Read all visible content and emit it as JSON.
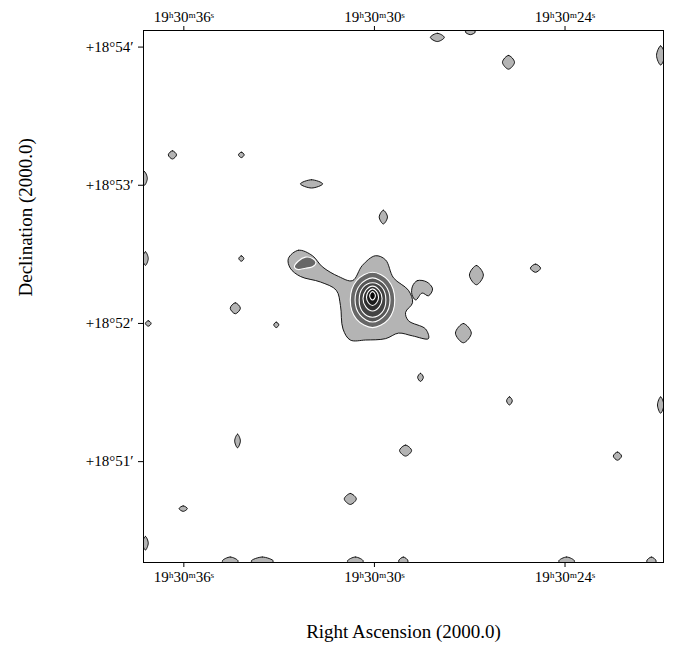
{
  "chart_data": {
    "type": "contour",
    "xlabel": "Right Ascension (2000.0)",
    "ylabel": "Declination (2000.0)",
    "xlim": [
      70237.27,
      70220.9
    ],
    "ylim": [
      1130.27,
      1134.12
    ],
    "xticks": [
      {
        "value": 70236,
        "label": "19ʰ30ᵐ36ˢ"
      },
      {
        "value": 70230,
        "label": "19ʰ30ᵐ30ˢ"
      },
      {
        "value": 70224,
        "label": "19ʰ30ᵐ24ˢ"
      }
    ],
    "yticks": [
      {
        "value": 1131,
        "label": "+18°51′"
      },
      {
        "value": 1132,
        "label": "+18°52′"
      },
      {
        "value": 1133,
        "label": "+18°53′"
      },
      {
        "value": 1134,
        "label": "+18°54′"
      }
    ],
    "contours": [
      {
        "level": 1,
        "points": [
          [
            70232.71,
            1132.47
          ],
          [
            70232.39,
            1132.53
          ],
          [
            70231.95,
            1132.49
          ],
          [
            70231.64,
            1132.41
          ],
          [
            70231.13,
            1132.34
          ],
          [
            70230.69,
            1132.31
          ],
          [
            70230.38,
            1132.42
          ],
          [
            70229.97,
            1132.49
          ],
          [
            70229.65,
            1132.46
          ],
          [
            70229.4,
            1132.33
          ],
          [
            70228.93,
            1132.24
          ],
          [
            70228.8,
            1132.15
          ],
          [
            70229.02,
            1132.08
          ],
          [
            70228.93,
            1132.02
          ],
          [
            70228.39,
            1131.96
          ],
          [
            70228.3,
            1131.89
          ],
          [
            70228.8,
            1131.91
          ],
          [
            70229.24,
            1131.93
          ],
          [
            70229.65,
            1131.89
          ],
          [
            70230.28,
            1131.88
          ],
          [
            70230.76,
            1131.88
          ],
          [
            70230.99,
            1131.96
          ],
          [
            70231.07,
            1132.13
          ],
          [
            70231.2,
            1132.24
          ],
          [
            70231.7,
            1132.3
          ],
          [
            70232.33,
            1132.34
          ],
          [
            70232.65,
            1132.4
          ]
        ]
      },
      {
        "level": 1,
        "points": [
          [
            70228.8,
            1132.27
          ],
          [
            70228.65,
            1132.31
          ],
          [
            70228.35,
            1132.3
          ],
          [
            70228.17,
            1132.25
          ],
          [
            70228.3,
            1132.2
          ],
          [
            70228.5,
            1132.22
          ],
          [
            70228.7,
            1132.17
          ],
          [
            70228.82,
            1132.21
          ]
        ]
      },
      {
        "level": 1,
        "points": [
          [
            70228.24,
            1134.07
          ],
          [
            70228.02,
            1134.1
          ],
          [
            70227.8,
            1134.07
          ],
          [
            70228.02,
            1134.04
          ]
        ]
      },
      {
        "level": 1,
        "points": [
          [
            70227.14,
            1134.11
          ],
          [
            70226.98,
            1134.13
          ],
          [
            70226.82,
            1134.11
          ],
          [
            70226.98,
            1134.09
          ]
        ]
      },
      {
        "level": 1,
        "points": [
          [
            70225.97,
            1133.89
          ],
          [
            70225.78,
            1133.94
          ],
          [
            70225.59,
            1133.89
          ],
          [
            70225.78,
            1133.84
          ]
        ]
      },
      {
        "level": 1,
        "points": [
          [
            70221.12,
            1133.94
          ],
          [
            70220.99,
            1134.01
          ],
          [
            70220.86,
            1133.94
          ],
          [
            70220.99,
            1133.87
          ]
        ]
      },
      {
        "level": 1,
        "points": [
          [
            70236.49,
            1133.22
          ],
          [
            70236.36,
            1133.25
          ],
          [
            70236.23,
            1133.22
          ],
          [
            70236.36,
            1133.19
          ]
        ]
      },
      {
        "level": 1,
        "points": [
          [
            70237.33,
            1133.05
          ],
          [
            70237.24,
            1133.1
          ],
          [
            70237.15,
            1133.05
          ],
          [
            70237.24,
            1133.0
          ]
        ]
      },
      {
        "level": 1,
        "points": [
          [
            70234.28,
            1133.22
          ],
          [
            70234.19,
            1133.24
          ],
          [
            70234.1,
            1133.22
          ],
          [
            70234.19,
            1133.2
          ]
        ]
      },
      {
        "level": 1,
        "points": [
          [
            70232.33,
            1133.01
          ],
          [
            70231.98,
            1133.04
          ],
          [
            70231.63,
            1133.01
          ],
          [
            70231.98,
            1132.98
          ]
        ]
      },
      {
        "level": 1,
        "points": [
          [
            70229.85,
            1132.77
          ],
          [
            70229.72,
            1132.82
          ],
          [
            70229.59,
            1132.77
          ],
          [
            70229.72,
            1132.72
          ]
        ]
      },
      {
        "level": 1,
        "points": [
          [
            70227.01,
            1132.35
          ],
          [
            70226.79,
            1132.42
          ],
          [
            70226.57,
            1132.35
          ],
          [
            70226.79,
            1132.28
          ]
        ]
      },
      {
        "level": 1,
        "points": [
          [
            70225.09,
            1132.4
          ],
          [
            70224.93,
            1132.43
          ],
          [
            70224.77,
            1132.4
          ],
          [
            70224.93,
            1132.37
          ]
        ]
      },
      {
        "level": 1,
        "points": [
          [
            70237.3,
            1132.47
          ],
          [
            70237.21,
            1132.52
          ],
          [
            70237.12,
            1132.47
          ],
          [
            70237.21,
            1132.42
          ]
        ]
      },
      {
        "level": 1,
        "points": [
          [
            70234.27,
            1132.47
          ],
          [
            70234.19,
            1132.49
          ],
          [
            70234.11,
            1132.47
          ],
          [
            70234.19,
            1132.45
          ]
        ]
      },
      {
        "level": 1,
        "points": [
          [
            70234.54,
            1132.11
          ],
          [
            70234.38,
            1132.15
          ],
          [
            70234.22,
            1132.11
          ],
          [
            70234.38,
            1132.07
          ]
        ]
      },
      {
        "level": 1,
        "points": [
          [
            70237.21,
            1132.0
          ],
          [
            70237.12,
            1132.02
          ],
          [
            70237.03,
            1132.0
          ],
          [
            70237.12,
            1131.98
          ]
        ]
      },
      {
        "level": 1,
        "points": [
          [
            70233.17,
            1131.99
          ],
          [
            70233.09,
            1132.01
          ],
          [
            70233.01,
            1131.99
          ],
          [
            70233.09,
            1131.97
          ]
        ]
      },
      {
        "level": 1,
        "points": [
          [
            70227.45,
            1131.93
          ],
          [
            70227.2,
            1132.0
          ],
          [
            70226.95,
            1131.93
          ],
          [
            70227.2,
            1131.86
          ]
        ]
      },
      {
        "level": 1,
        "points": [
          [
            70228.64,
            1131.61
          ],
          [
            70228.55,
            1131.64
          ],
          [
            70228.46,
            1131.61
          ],
          [
            70228.55,
            1131.58
          ]
        ]
      },
      {
        "level": 1,
        "points": [
          [
            70225.84,
            1131.44
          ],
          [
            70225.75,
            1131.47
          ],
          [
            70225.66,
            1131.44
          ],
          [
            70225.75,
            1131.41
          ]
        ]
      },
      {
        "level": 1,
        "points": [
          [
            70221.09,
            1131.41
          ],
          [
            70220.99,
            1131.47
          ],
          [
            70220.89,
            1131.41
          ],
          [
            70220.99,
            1131.35
          ]
        ]
      },
      {
        "level": 1,
        "points": [
          [
            70234.4,
            1131.15
          ],
          [
            70234.31,
            1131.2
          ],
          [
            70234.22,
            1131.15
          ],
          [
            70234.31,
            1131.1
          ]
        ]
      },
      {
        "level": 1,
        "points": [
          [
            70229.21,
            1131.08
          ],
          [
            70229.02,
            1131.12
          ],
          [
            70228.83,
            1131.08
          ],
          [
            70229.02,
            1131.04
          ]
        ]
      },
      {
        "level": 1,
        "points": [
          [
            70222.48,
            1131.04
          ],
          [
            70222.35,
            1131.07
          ],
          [
            70222.22,
            1131.04
          ],
          [
            70222.35,
            1131.01
          ]
        ]
      },
      {
        "level": 1,
        "points": [
          [
            70230.95,
            1130.73
          ],
          [
            70230.76,
            1130.77
          ],
          [
            70230.57,
            1130.73
          ],
          [
            70230.76,
            1130.69
          ]
        ]
      },
      {
        "level": 1,
        "points": [
          [
            70236.15,
            1130.66
          ],
          [
            70236.02,
            1130.68
          ],
          [
            70235.89,
            1130.66
          ],
          [
            70236.02,
            1130.64
          ]
        ]
      },
      {
        "level": 1,
        "points": [
          [
            70237.3,
            1130.41
          ],
          [
            70237.21,
            1130.46
          ],
          [
            70237.12,
            1130.41
          ],
          [
            70237.21,
            1130.36
          ]
        ]
      },
      {
        "level": 1,
        "points": [
          [
            70234.79,
            1130.28
          ],
          [
            70234.54,
            1130.31
          ],
          [
            70234.29,
            1130.28
          ],
          [
            70234.54,
            1130.25
          ]
        ]
      },
      {
        "level": 1,
        "points": [
          [
            70233.88,
            1130.28
          ],
          [
            70233.53,
            1130.31
          ],
          [
            70233.18,
            1130.28
          ],
          [
            70233.53,
            1130.25
          ]
        ]
      },
      {
        "level": 1,
        "points": [
          [
            70230.85,
            1130.28
          ],
          [
            70230.6,
            1130.31
          ],
          [
            70230.35,
            1130.28
          ],
          [
            70230.6,
            1130.25
          ]
        ]
      },
      {
        "level": 1,
        "points": [
          [
            70229.24,
            1130.28
          ],
          [
            70229.09,
            1130.31
          ],
          [
            70228.94,
            1130.28
          ],
          [
            70229.09,
            1130.25
          ]
        ]
      },
      {
        "level": 1,
        "points": [
          [
            70224.2,
            1130.28
          ],
          [
            70223.95,
            1130.31
          ],
          [
            70223.7,
            1130.28
          ],
          [
            70223.95,
            1130.25
          ]
        ]
      },
      {
        "level": 1,
        "points": [
          [
            70221.43,
            1130.28
          ],
          [
            70221.28,
            1130.31
          ],
          [
            70221.13,
            1130.28
          ],
          [
            70221.28,
            1130.25
          ]
        ]
      },
      {
        "level": 2,
        "points": [
          [
            70232.52,
            1132.41
          ],
          [
            70232.4,
            1132.45
          ],
          [
            70232.17,
            1132.48
          ],
          [
            70231.95,
            1132.47
          ],
          [
            70231.84,
            1132.44
          ],
          [
            70231.95,
            1132.41
          ],
          [
            70232.17,
            1132.4
          ],
          [
            70232.4,
            1132.39
          ]
        ]
      },
      {
        "level": 2,
        "points": [
          [
            70230.76,
            1132.17
          ],
          [
            70230.56,
            1132.31
          ],
          [
            70230.06,
            1132.37
          ],
          [
            70229.56,
            1132.31
          ],
          [
            70229.36,
            1132.17
          ],
          [
            70229.56,
            1132.03
          ],
          [
            70230.06,
            1131.97
          ],
          [
            70230.56,
            1132.03
          ]
        ]
      },
      {
        "level": 3,
        "points": [
          [
            70230.61,
            1132.17
          ],
          [
            70230.45,
            1132.28
          ],
          [
            70230.06,
            1132.33
          ],
          [
            70229.67,
            1132.28
          ],
          [
            70229.51,
            1132.17
          ],
          [
            70229.67,
            1132.06
          ],
          [
            70230.06,
            1132.01
          ],
          [
            70230.45,
            1132.06
          ]
        ]
      },
      {
        "level": 4,
        "points": [
          [
            70230.48,
            1132.17
          ],
          [
            70230.36,
            1132.26
          ],
          [
            70230.06,
            1132.295
          ],
          [
            70229.76,
            1132.26
          ],
          [
            70229.64,
            1132.17
          ],
          [
            70229.76,
            1132.08
          ],
          [
            70230.06,
            1132.045
          ],
          [
            70230.36,
            1132.08
          ]
        ]
      },
      {
        "level": 5,
        "points": [
          [
            70230.36,
            1132.18
          ],
          [
            70230.27,
            1132.24
          ],
          [
            70230.06,
            1132.27
          ],
          [
            70229.85,
            1132.24
          ],
          [
            70229.76,
            1132.18
          ],
          [
            70229.85,
            1132.12
          ],
          [
            70230.06,
            1132.09
          ],
          [
            70230.27,
            1132.12
          ]
        ]
      },
      {
        "level": 6,
        "points": [
          [
            70230.25,
            1132.19
          ],
          [
            70230.19,
            1132.23
          ],
          [
            70230.06,
            1132.25
          ],
          [
            70229.93,
            1132.23
          ],
          [
            70229.87,
            1132.19
          ],
          [
            70229.93,
            1132.15
          ],
          [
            70230.06,
            1132.13
          ],
          [
            70230.19,
            1132.15
          ]
        ]
      },
      {
        "level": 7,
        "points": [
          [
            70230.15,
            1132.2
          ],
          [
            70230.12,
            1132.22
          ],
          [
            70230.06,
            1132.23
          ],
          [
            70230.0,
            1132.22
          ],
          [
            70229.97,
            1132.2
          ],
          [
            70230.0,
            1132.18
          ],
          [
            70230.06,
            1132.17
          ],
          [
            70230.12,
            1132.18
          ]
        ]
      }
    ]
  }
}
